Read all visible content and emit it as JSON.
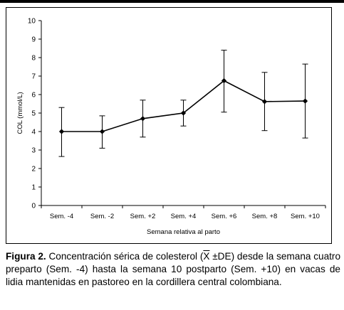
{
  "chart_data": {
    "type": "line",
    "categories": [
      "Sem. -4",
      "Sem. -2",
      "Sem. +2",
      "Sem. +4",
      "Sem. +6",
      "Sem. +8",
      "Sem. +10"
    ],
    "values": [
      4.0,
      4.0,
      4.7,
      5.0,
      6.75,
      5.62,
      5.65
    ],
    "error_upper": [
      5.3,
      4.85,
      5.7,
      5.7,
      8.4,
      7.2,
      7.65
    ],
    "error_lower": [
      2.65,
      3.1,
      3.7,
      4.3,
      5.05,
      4.05,
      3.65
    ],
    "ylim": [
      0,
      10
    ],
    "yticks": [
      "0",
      "1",
      "2",
      "3",
      "4",
      "5",
      "6",
      "7",
      "8",
      "9",
      "10"
    ],
    "ylabel": "COL (mmol/L)",
    "xlabel": "Semana relativa al parto",
    "grid": false,
    "legend": "none",
    "line_color": "#000000",
    "marker": "diamond"
  },
  "caption": {
    "lead": "Figura 2.",
    "pre": "Concentración sérica de colesterol (",
    "xbar": "X",
    "post": " ±DE) desde la semana cuatro preparto (Sem. -4) hasta la semana 10 postparto (Sem. +10) en vacas de lidia mantenidas en pastoreo en la cordillera central colombiana."
  }
}
